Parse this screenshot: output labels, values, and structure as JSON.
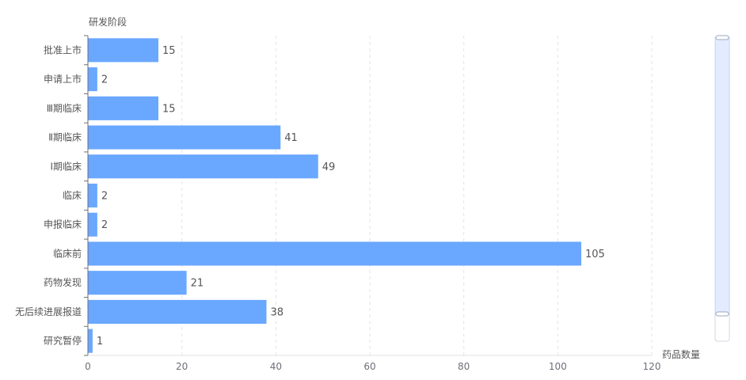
{
  "chart_data": {
    "type": "bar",
    "orientation": "horizontal",
    "categories": [
      "研究暂停",
      "无后续进展报道",
      "药物发现",
      "临床前",
      "申报临床",
      "临床",
      "Ⅰ期临床",
      "Ⅱ期临床",
      "Ⅲ期临床",
      "申请上市",
      "批准上市"
    ],
    "values": [
      1,
      38,
      21,
      105,
      2,
      2,
      49,
      41,
      15,
      2,
      15
    ],
    "ylabel": "研发阶段",
    "xlabel": "药品数量",
    "xlim": [
      0,
      120
    ],
    "xticks": [
      0,
      20,
      40,
      60,
      80,
      100,
      120
    ],
    "grid": "vertical-dashed",
    "bar_color": "#6aa7ff",
    "data_labels": true,
    "scrollbar": "vertical data zoom, right side"
  }
}
